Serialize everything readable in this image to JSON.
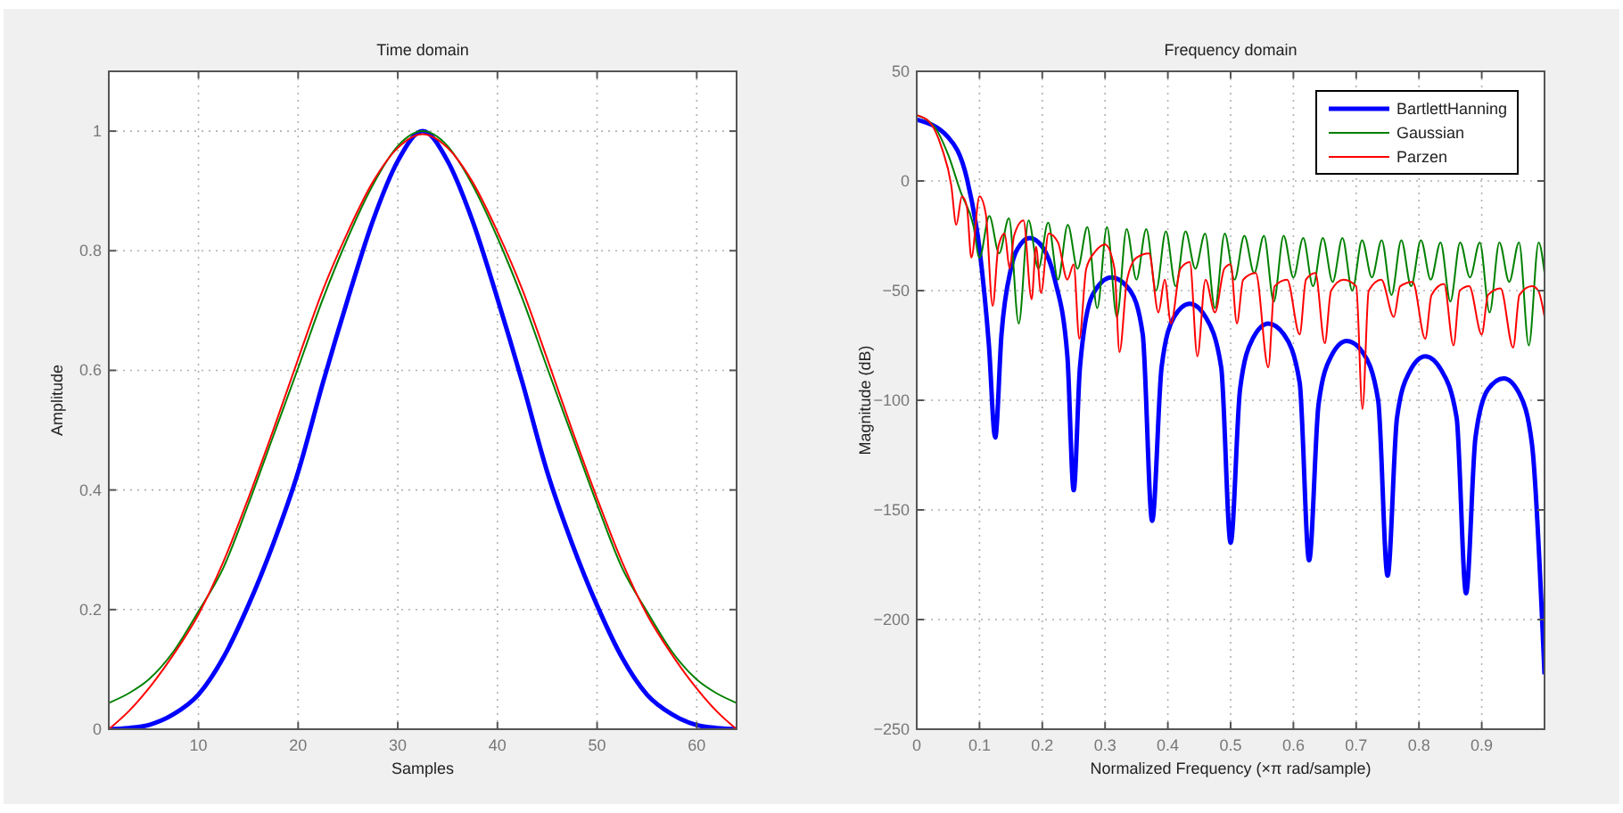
{
  "chart_data": [
    {
      "type": "line",
      "title": "Time domain",
      "xlabel": "Samples",
      "ylabel": "Amplitude",
      "xlim": [
        1,
        64
      ],
      "xticks": [
        10,
        20,
        30,
        40,
        50,
        60
      ],
      "ylim": [
        0,
        1.1
      ],
      "yticks": [
        0,
        0.2,
        0.4,
        0.6,
        0.8,
        1
      ],
      "grid": true,
      "x": [
        1,
        3,
        5,
        7.5,
        10,
        12.5,
        15,
        17.5,
        20,
        22.5,
        25,
        27.5,
        30,
        32.5,
        35,
        37.5,
        40,
        42.5,
        45,
        47.5,
        50,
        52.5,
        55,
        57.5,
        60,
        62,
        64
      ],
      "series": [
        {
          "color": "#0000ff",
          "values": [
            0,
            0.002,
            0.007,
            0.025,
            0.058,
            0.12,
            0.207,
            0.31,
            0.43,
            0.58,
            0.72,
            0.85,
            0.95,
            1,
            0.95,
            0.85,
            0.72,
            0.58,
            0.43,
            0.31,
            0.207,
            0.12,
            0.058,
            0.025,
            0.007,
            0.002,
            0
          ]
        },
        {
          "color": "#008000",
          "values": [
            0.044,
            0.06,
            0.083,
            0.13,
            0.197,
            0.27,
            0.376,
            0.49,
            0.604,
            0.72,
            0.822,
            0.91,
            0.975,
            1,
            0.975,
            0.91,
            0.822,
            0.72,
            0.604,
            0.49,
            0.376,
            0.27,
            0.197,
            0.13,
            0.083,
            0.06,
            0.044
          ]
        },
        {
          "color": "#ff0000",
          "values": [
            0,
            0.03,
            0.068,
            0.125,
            0.192,
            0.28,
            0.386,
            0.5,
            0.619,
            0.735,
            0.832,
            0.915,
            0.972,
            0.995,
            0.972,
            0.915,
            0.832,
            0.735,
            0.619,
            0.5,
            0.386,
            0.28,
            0.192,
            0.125,
            0.068,
            0.03,
            0
          ]
        }
      ]
    },
    {
      "type": "line",
      "title": "Frequency domain",
      "xlabel": "Normalized Frequency  (×π rad/sample)",
      "ylabel": "Magnitude (dB)",
      "xlim": [
        0,
        1
      ],
      "xticks": [
        0,
        0.1,
        0.2,
        0.3,
        0.4,
        0.5,
        0.6,
        0.7,
        0.8,
        0.9
      ],
      "ylim": [
        -250,
        50
      ],
      "yticks": [
        -250,
        -200,
        -150,
        -100,
        -50,
        0,
        50
      ],
      "grid": true,
      "legend": "top right",
      "series": [
        {
          "name": "BartlettHanning",
          "color": "#0000ff",
          "x": [
            0,
            0.05,
            0.08,
            0.1,
            0.115,
            0.125,
            0.135,
            0.15,
            0.165,
            0.18,
            0.2,
            0.22,
            0.24,
            0.25,
            0.26,
            0.28,
            0.31,
            0.34,
            0.36,
            0.375,
            0.39,
            0.41,
            0.435,
            0.46,
            0.485,
            0.5,
            0.515,
            0.535,
            0.56,
            0.585,
            0.61,
            0.625,
            0.64,
            0.66,
            0.685,
            0.71,
            0.735,
            0.75,
            0.765,
            0.785,
            0.81,
            0.835,
            0.86,
            0.875,
            0.89,
            0.91,
            0.935,
            0.96,
            0.98,
            1
          ],
          "values": [
            28,
            20,
            1,
            -31,
            -75,
            -117,
            -70,
            -40,
            -29,
            -26,
            -30,
            -45,
            -80,
            -141,
            -85,
            -52,
            -44,
            -50,
            -70,
            -155,
            -85,
            -62,
            -56,
            -62,
            -85,
            -165,
            -95,
            -72,
            -65,
            -70,
            -92,
            -173,
            -102,
            -80,
            -73,
            -78,
            -100,
            -180,
            -108,
            -87,
            -80,
            -86,
            -108,
            -188,
            -117,
            -95,
            -90,
            -97,
            -120,
            -225
          ]
        },
        {
          "name": "Gaussian",
          "color": "#008000",
          "x": [
            0,
            0.03,
            0.05,
            0.07,
            0.09,
            0.1,
            0.115625,
            0.13125,
            0.146875,
            0.1625,
            0.178125,
            0.19375,
            0.209375,
            0.225,
            0.240625,
            0.25625,
            0.271875,
            0.2875,
            0.303125,
            0.31875,
            0.334375,
            0.35,
            0.365625,
            0.38125,
            0.396875,
            0.4125,
            0.428125,
            0.44375,
            0.459375,
            0.475,
            0.490625,
            0.50625,
            0.521875,
            0.5375,
            0.553125,
            0.56875,
            0.584375,
            0.6,
            0.615625,
            0.63125,
            0.646875,
            0.6625,
            0.678125,
            0.69375,
            0.709375,
            0.725,
            0.740625,
            0.75625,
            0.771875,
            0.7875,
            0.803125,
            0.81875,
            0.834375,
            0.85,
            0.865625,
            0.88125,
            0.896875,
            0.9125,
            0.928125,
            0.94375,
            0.959375,
            0.975,
            0.990625,
            1
          ],
          "values": [
            30,
            24,
            12,
            -5,
            -20,
            -35,
            -16,
            -33,
            -17,
            -65,
            -18,
            -40,
            -19,
            -45,
            -20,
            -40,
            -21,
            -58,
            -21,
            -62,
            -22,
            -45,
            -22,
            -50,
            -23,
            -48,
            -23,
            -40,
            -24,
            -58,
            -24,
            -45,
            -25,
            -42,
            -25,
            -55,
            -25,
            -44,
            -26,
            -48,
            -26,
            -46,
            -26,
            -50,
            -27,
            -44,
            -27,
            -52,
            -27,
            -48,
            -27,
            -45,
            -28,
            -55,
            -28,
            -44,
            -28,
            -60,
            -28,
            -46,
            -28,
            -75,
            -28,
            -42
          ]
        },
        {
          "name": "Parzen",
          "color": "#ff0000",
          "x": [
            0,
            0.02,
            0.04,
            0.055,
            0.063,
            0.072,
            0.08,
            0.087,
            0.1,
            0.11,
            0.121,
            0.13,
            0.14,
            0.148,
            0.155,
            0.17,
            0.183,
            0.19,
            0.198,
            0.21,
            0.225,
            0.24,
            0.25,
            0.259,
            0.27,
            0.285,
            0.3,
            0.315,
            0.323,
            0.335,
            0.35,
            0.37,
            0.385,
            0.395,
            0.405,
            0.42,
            0.435,
            0.447,
            0.46,
            0.475,
            0.49,
            0.5,
            0.51,
            0.52,
            0.54,
            0.56,
            0.57,
            0.59,
            0.61,
            0.62,
            0.635,
            0.65,
            0.66,
            0.68,
            0.7,
            0.71,
            0.72,
            0.74,
            0.76,
            0.77,
            0.79,
            0.81,
            0.82,
            0.84,
            0.855,
            0.865,
            0.88,
            0.9,
            0.91,
            0.93,
            0.95,
            0.96,
            0.98,
            0.99,
            1
          ],
          "values": [
            30,
            27,
            15,
            -2,
            -20,
            -7,
            -12,
            -35,
            -7,
            -15,
            -57,
            -30,
            -24,
            -40,
            -25,
            -18,
            -54,
            -30,
            -51,
            -24,
            -28,
            -45,
            -38,
            -72,
            -40,
            -32,
            -29,
            -40,
            -78,
            -45,
            -35,
            -33,
            -60,
            -45,
            -65,
            -40,
            -37,
            -80,
            -45,
            -60,
            -40,
            -38,
            -65,
            -45,
            -42,
            -85,
            -48,
            -45,
            -70,
            -45,
            -42,
            -74,
            -50,
            -45,
            -48,
            -104,
            -50,
            -45,
            -62,
            -48,
            -46,
            -72,
            -52,
            -47,
            -75,
            -50,
            -48,
            -70,
            -52,
            -49,
            -76,
            -52,
            -48,
            -50,
            -62
          ]
        }
      ]
    }
  ]
}
